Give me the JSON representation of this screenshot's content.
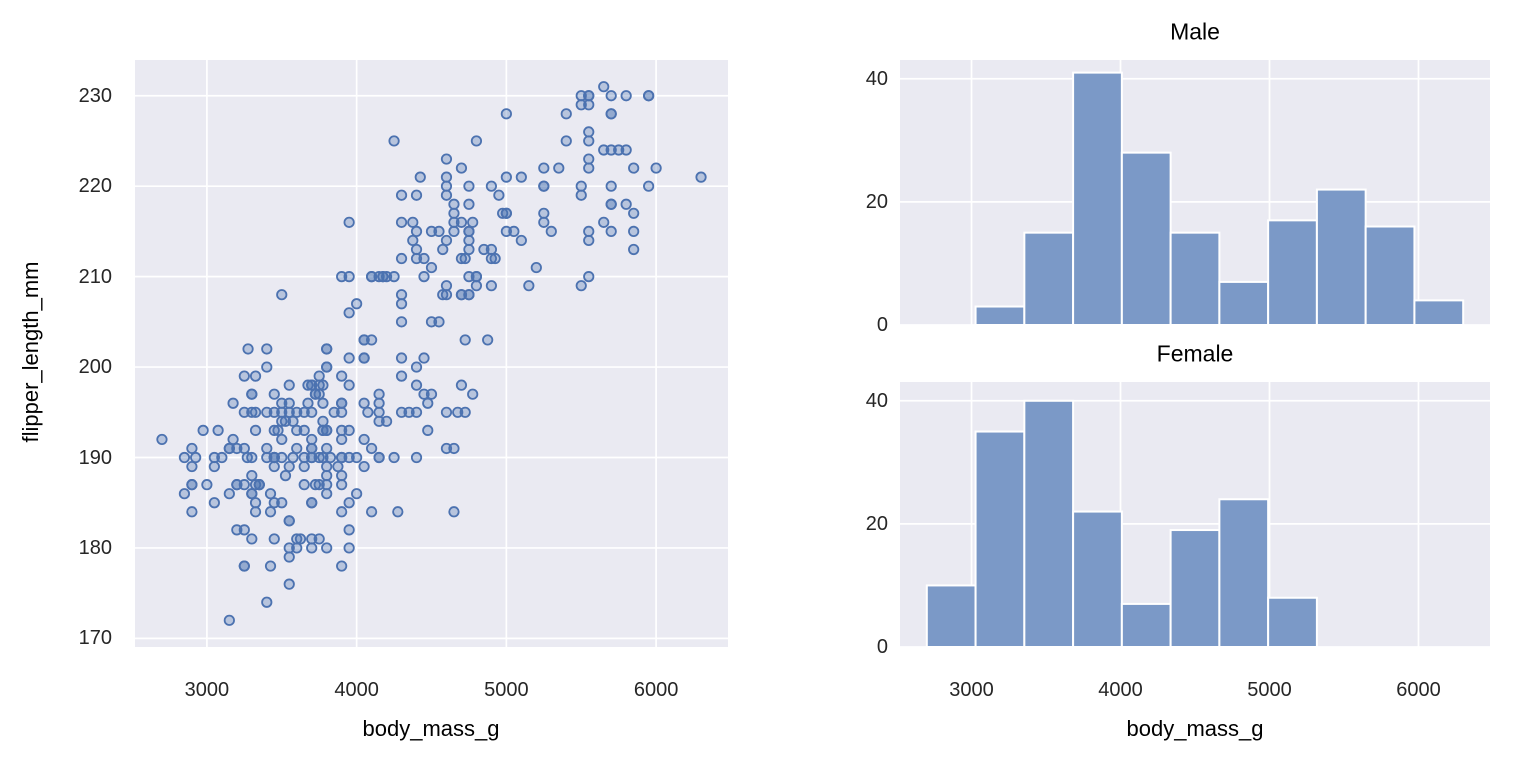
{
  "colors": {
    "figure_bg": "#ffffff",
    "axes_bg": "#eaeaf2",
    "grid": "#ffffff",
    "marker_edge": "#4c72b0",
    "marker_fill": "rgba(76,114,176,0.32)",
    "bar_fill": "#7b99c7",
    "bar_edge": "#ffffff",
    "tick_text": "#262626",
    "label_text": "#000000"
  },
  "chart_data": [
    {
      "type": "scatter",
      "name": "body-mass-vs-flipper-scatter",
      "xlabel": "body_mass_g",
      "ylabel": "flipper_length_mm",
      "xlim": [
        2520,
        6480
      ],
      "ylim": [
        169.05,
        233.95
      ],
      "x_ticks": [
        3000,
        4000,
        5000,
        6000
      ],
      "y_ticks": [
        170,
        180,
        190,
        200,
        210,
        220,
        230
      ],
      "grid": true,
      "points": [
        [
          3750,
          181
        ],
        [
          3800,
          186
        ],
        [
          3250,
          195
        ],
        [
          3450,
          193
        ],
        [
          3650,
          190
        ],
        [
          3625,
          181
        ],
        [
          4675,
          195
        ],
        [
          3475,
          193
        ],
        [
          4250,
          190
        ],
        [
          3300,
          186
        ],
        [
          3700,
          180
        ],
        [
          3200,
          182
        ],
        [
          3800,
          191
        ],
        [
          4400,
          198
        ],
        [
          3700,
          185
        ],
        [
          3450,
          195
        ],
        [
          4500,
          197
        ],
        [
          3325,
          184
        ],
        [
          4200,
          194
        ],
        [
          3400,
          174
        ],
        [
          3600,
          180
        ],
        [
          3800,
          189
        ],
        [
          3950,
          185
        ],
        [
          3800,
          180
        ],
        [
          3800,
          187
        ],
        [
          3550,
          183
        ],
        [
          3200,
          187
        ],
        [
          3150,
          172
        ],
        [
          3950,
          180
        ],
        [
          3250,
          178
        ],
        [
          3900,
          178
        ],
        [
          3300,
          188
        ],
        [
          3900,
          184
        ],
        [
          3325,
          195
        ],
        [
          4150,
          196
        ],
        [
          3950,
          190
        ],
        [
          3550,
          180
        ],
        [
          3300,
          181
        ],
        [
          4650,
          184
        ],
        [
          3250,
          182
        ],
        [
          3900,
          195
        ],
        [
          3300,
          186
        ],
        [
          3900,
          196
        ],
        [
          3325,
          185
        ],
        [
          4150,
          190
        ],
        [
          3950,
          182
        ],
        [
          3550,
          179
        ],
        [
          3300,
          190
        ],
        [
          4650,
          191
        ],
        [
          3150,
          186
        ],
        [
          3900,
          188
        ],
        [
          3100,
          190
        ],
        [
          4400,
          200
        ],
        [
          3000,
          187
        ],
        [
          4600,
          191
        ],
        [
          3425,
          186
        ],
        [
          2975,
          193
        ],
        [
          3450,
          181
        ],
        [
          4150,
          194
        ],
        [
          3500,
          185
        ],
        [
          4300,
          195
        ],
        [
          3450,
          185
        ],
        [
          4050,
          192
        ],
        [
          2900,
          184
        ],
        [
          3700,
          192
        ],
        [
          3550,
          195
        ],
        [
          3800,
          188
        ],
        [
          2850,
          190
        ],
        [
          3750,
          198
        ],
        [
          4400,
          190
        ],
        [
          3700,
          190
        ],
        [
          4050,
          196
        ],
        [
          3300,
          197
        ],
        [
          3700,
          190
        ],
        [
          4350,
          195
        ],
        [
          2900,
          191
        ],
        [
          4100,
          184
        ],
        [
          3725,
          187
        ],
        [
          4725,
          195
        ],
        [
          3075,
          193
        ],
        [
          4250,
          210
        ],
        [
          2925,
          190
        ],
        [
          3550,
          198
        ],
        [
          3750,
          190
        ],
        [
          3900,
          190
        ],
        [
          3175,
          196
        ],
        [
          4775,
          197
        ],
        [
          3825,
          190
        ],
        [
          4600,
          195
        ],
        [
          3200,
          191
        ],
        [
          4275,
          184
        ],
        [
          3900,
          187
        ],
        [
          4075,
          195
        ],
        [
          2900,
          189
        ],
        [
          3775,
          196
        ],
        [
          3350,
          187
        ],
        [
          3325,
          193
        ],
        [
          3150,
          191
        ],
        [
          3500,
          194
        ],
        [
          3450,
          190
        ],
        [
          3875,
          189
        ],
        [
          3050,
          189
        ],
        [
          4000,
          190
        ],
        [
          3275,
          202
        ],
        [
          4300,
          205
        ],
        [
          3050,
          185
        ],
        [
          4000,
          186
        ],
        [
          3325,
          187
        ],
        [
          3500,
          208
        ],
        [
          3500,
          190
        ],
        [
          4475,
          196
        ],
        [
          3425,
          178
        ],
        [
          3900,
          192
        ],
        [
          3175,
          192
        ],
        [
          4725,
          203
        ],
        [
          3550,
          183
        ],
        [
          3900,
          190
        ],
        [
          4475,
          193
        ],
        [
          3425,
          184
        ],
        [
          4300,
          199
        ],
        [
          3500,
          195
        ],
        [
          3450,
          189
        ],
        [
          4050,
          189
        ],
        [
          2900,
          187
        ],
        [
          3700,
          198
        ],
        [
          3550,
          176
        ],
        [
          3800,
          202
        ],
        [
          2850,
          186
        ],
        [
          3750,
          199
        ],
        [
          3150,
          191
        ],
        [
          3400,
          195
        ],
        [
          3600,
          191
        ],
        [
          3270,
          190
        ],
        [
          3050,
          190
        ],
        [
          3725,
          197
        ],
        [
          3950,
          193
        ],
        [
          3250,
          199
        ],
        [
          3750,
          187
        ],
        [
          4150,
          190
        ],
        [
          3700,
          191
        ],
        [
          3800,
          200
        ],
        [
          3775,
          190
        ],
        [
          3700,
          195
        ],
        [
          4100,
          191
        ],
        [
          3775,
          193
        ],
        [
          3450,
          190
        ],
        [
          3575,
          194
        ],
        [
          4700,
          198
        ],
        [
          3900,
          193
        ],
        [
          3550,
          189
        ],
        [
          4450,
          197
        ],
        [
          3500,
          192
        ],
        [
          3900,
          196
        ],
        [
          3650,
          193
        ],
        [
          3525,
          188
        ],
        [
          3725,
          197
        ],
        [
          3950,
          198
        ],
        [
          3250,
          178
        ],
        [
          3750,
          197
        ],
        [
          4150,
          195
        ],
        [
          3700,
          198
        ],
        [
          3800,
          193
        ],
        [
          3775,
          194
        ],
        [
          3700,
          185
        ],
        [
          4050,
          201
        ],
        [
          3575,
          190
        ],
        [
          4050,
          201
        ],
        [
          3300,
          197
        ],
        [
          3700,
          181
        ],
        [
          3450,
          190
        ],
        [
          4400,
          195
        ],
        [
          3600,
          181
        ],
        [
          3400,
          191
        ],
        [
          2900,
          187
        ],
        [
          3800,
          193
        ],
        [
          3300,
          195
        ],
        [
          4150,
          197
        ],
        [
          3400,
          200
        ],
        [
          3800,
          200
        ],
        [
          3700,
          191
        ],
        [
          4550,
          205
        ],
        [
          3200,
          187
        ],
        [
          4300,
          201
        ],
        [
          3350,
          187
        ],
        [
          4100,
          203
        ],
        [
          3600,
          195
        ],
        [
          3900,
          199
        ],
        [
          3850,
          195
        ],
        [
          4800,
          210
        ],
        [
          2700,
          192
        ],
        [
          4500,
          205
        ],
        [
          3950,
          210
        ],
        [
          3650,
          187
        ],
        [
          3550,
          196
        ],
        [
          3500,
          196
        ],
        [
          3675,
          196
        ],
        [
          4450,
          201
        ],
        [
          3400,
          190
        ],
        [
          4300,
          212
        ],
        [
          3250,
          187
        ],
        [
          3675,
          198
        ],
        [
          3325,
          199
        ],
        [
          3950,
          201
        ],
        [
          3600,
          193
        ],
        [
          4050,
          203
        ],
        [
          3350,
          187
        ],
        [
          3450,
          197
        ],
        [
          3250,
          191
        ],
        [
          4050,
          203
        ],
        [
          3800,
          202
        ],
        [
          3525,
          194
        ],
        [
          3950,
          206
        ],
        [
          3650,
          189
        ],
        [
          3650,
          195
        ],
        [
          4000,
          207
        ],
        [
          3400,
          202
        ],
        [
          3775,
          193
        ],
        [
          4100,
          210
        ],
        [
          3775,
          198
        ],
        [
          4500,
          211
        ],
        [
          5700,
          230
        ],
        [
          4450,
          210
        ],
        [
          5700,
          218
        ],
        [
          4550,
          215
        ],
        [
          4800,
          210
        ],
        [
          5200,
          211
        ],
        [
          4400,
          219
        ],
        [
          5150,
          209
        ],
        [
          4650,
          215
        ],
        [
          5550,
          214
        ],
        [
          4650,
          216
        ],
        [
          5850,
          213
        ],
        [
          4200,
          210
        ],
        [
          5850,
          217
        ],
        [
          4150,
          210
        ],
        [
          6300,
          221
        ],
        [
          4800,
          209
        ],
        [
          5350,
          222
        ],
        [
          5700,
          218
        ],
        [
          5000,
          215
        ],
        [
          4400,
          213
        ],
        [
          5050,
          215
        ],
        [
          5300,
          215
        ],
        [
          4400,
          215
        ],
        [
          5650,
          216
        ],
        [
          5700,
          215
        ],
        [
          4100,
          210
        ],
        [
          5250,
          220
        ],
        [
          4700,
          222
        ],
        [
          4900,
          209
        ],
        [
          4300,
          207
        ],
        [
          5800,
          230
        ],
        [
          4750,
          220
        ],
        [
          5700,
          220
        ],
        [
          4900,
          213
        ],
        [
          4300,
          219
        ],
        [
          4750,
          208
        ],
        [
          4300,
          208
        ],
        [
          4750,
          208
        ],
        [
          4250,
          225
        ],
        [
          5550,
          210
        ],
        [
          3950,
          216
        ],
        [
          5250,
          222
        ],
        [
          4975,
          217
        ],
        [
          4750,
          210
        ],
        [
          5400,
          225
        ],
        [
          4750,
          213
        ],
        [
          5550,
          215
        ],
        [
          3900,
          210
        ],
        [
          4600,
          220
        ],
        [
          4175,
          210
        ],
        [
          4800,
          225
        ],
        [
          5000,
          217
        ],
        [
          5950,
          220
        ],
        [
          4600,
          208
        ],
        [
          5500,
          220
        ],
        [
          4700,
          208
        ],
        [
          5800,
          224
        ],
        [
          4575,
          208
        ],
        [
          5000,
          221
        ],
        [
          5100,
          214
        ],
        [
          5650,
          231
        ],
        [
          4600,
          219
        ],
        [
          5550,
          230
        ],
        [
          4750,
          214
        ],
        [
          5550,
          229
        ],
        [
          4900,
          220
        ],
        [
          4600,
          223
        ],
        [
          5250,
          216
        ],
        [
          5100,
          221
        ],
        [
          4425,
          221
        ],
        [
          5250,
          217
        ],
        [
          4775,
          216
        ],
        [
          5950,
          230
        ],
        [
          4600,
          209
        ],
        [
          5250,
          220
        ],
        [
          4750,
          215
        ],
        [
          5550,
          223
        ],
        [
          4900,
          212
        ],
        [
          4600,
          221
        ],
        [
          4725,
          212
        ],
        [
          5700,
          224
        ],
        [
          4450,
          212
        ],
        [
          5700,
          228
        ],
        [
          4650,
          218
        ],
        [
          5800,
          218
        ],
        [
          4700,
          212
        ],
        [
          5550,
          230
        ],
        [
          4750,
          218
        ],
        [
          5000,
          228
        ],
        [
          4400,
          212
        ],
        [
          5650,
          224
        ],
        [
          4600,
          214
        ],
        [
          5550,
          226
        ],
        [
          4375,
          216
        ],
        [
          5850,
          222
        ],
        [
          4875,
          203
        ],
        [
          5550,
          225
        ],
        [
          4950,
          219
        ],
        [
          5700,
          228
        ],
        [
          4750,
          215
        ],
        [
          5400,
          228
        ],
        [
          4300,
          216
        ],
        [
          4500,
          215
        ],
        [
          4175,
          210
        ],
        [
          5500,
          219
        ],
        [
          4700,
          208
        ],
        [
          5500,
          209
        ],
        [
          4700,
          216
        ],
        [
          5500,
          229
        ],
        [
          4575,
          213
        ],
        [
          5500,
          230
        ],
        [
          5000,
          217
        ],
        [
          5950,
          230
        ],
        [
          4650,
          217
        ],
        [
          5550,
          222
        ],
        [
          4375,
          214
        ],
        [
          5850,
          215
        ],
        [
          6000,
          222
        ],
        [
          4925,
          212
        ],
        [
          4850,
          213
        ],
        [
          5750,
          224
        ]
      ]
    },
    {
      "type": "bar",
      "name": "male-body-mass-histogram",
      "title": "Male",
      "xlabel": "",
      "ylabel": "",
      "xlim": [
        2520,
        6480
      ],
      "ylim": [
        0,
        43.05
      ],
      "x_ticks": [
        3000,
        4000,
        5000,
        6000
      ],
      "x_tick_labels_visible": false,
      "y_ticks": [
        0,
        20,
        40
      ],
      "grid": true,
      "bin_start": 2700,
      "bin_end": 6300,
      "bin_count": 11,
      "bin_width": 327.27,
      "counts": [
        0,
        3,
        15,
        41,
        28,
        15,
        7,
        17,
        22,
        16,
        4
      ]
    },
    {
      "type": "bar",
      "name": "female-body-mass-histogram",
      "title": "Female",
      "xlabel": "body_mass_g",
      "ylabel": "",
      "xlim": [
        2520,
        6480
      ],
      "ylim": [
        0,
        43.05
      ],
      "x_ticks": [
        3000,
        4000,
        5000,
        6000
      ],
      "x_tick_labels_visible": true,
      "y_ticks": [
        0,
        20,
        40
      ],
      "grid": true,
      "bin_start": 2700,
      "bin_end": 6300,
      "bin_count": 11,
      "bin_width": 327.27,
      "counts": [
        10,
        35,
        40,
        22,
        7,
        19,
        24,
        8,
        0,
        0,
        0
      ]
    }
  ]
}
